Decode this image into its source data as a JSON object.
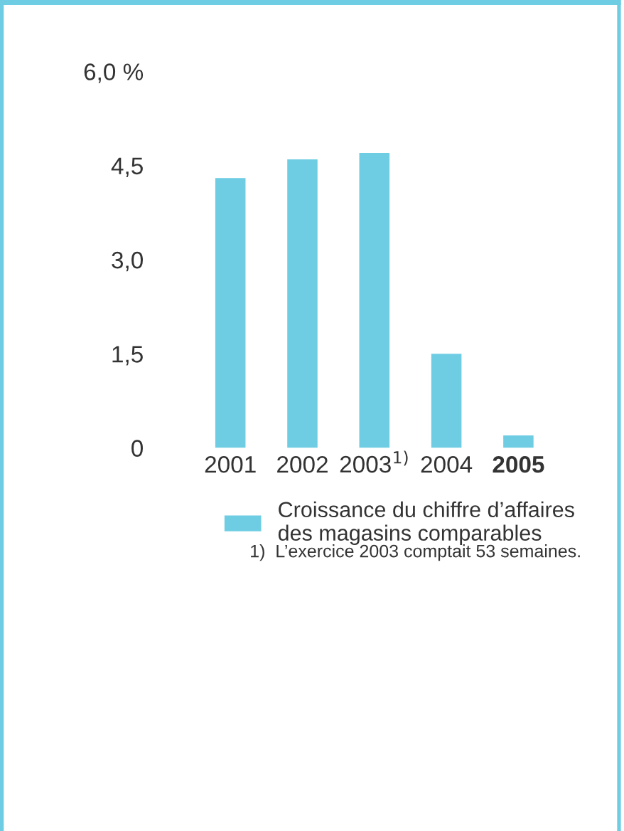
{
  "chart_data": {
    "type": "bar",
    "categories": [
      "2001",
      "2002",
      "2003$^{1)}$",
      "2004",
      "2005"
    ],
    "series": [
      {
        "name": "Croissance du chiffre d’affaires\ndes magasins comparables",
        "color": "#6ecde3",
        "values": [
          4.3,
          4.6,
          4.7,
          1.5,
          0.2
        ]
      }
    ],
    "ylim": [
      0,
      6
    ],
    "yticks": [
      0,
      {
        "value": 1.5,
        "label": "1,5"
      },
      {
        "value": 3.0,
        "label": "3,0"
      },
      {
        "value": 4.5,
        "label": "4,5"
      },
      {
        "value": 6.0,
        "label": "6,0 %"
      }
    ],
    "grid": false,
    "legend": "bottom",
    "annotations": [
      "1)  L’exercice 2003 comptait 53 semaines."
    ]
  }
}
